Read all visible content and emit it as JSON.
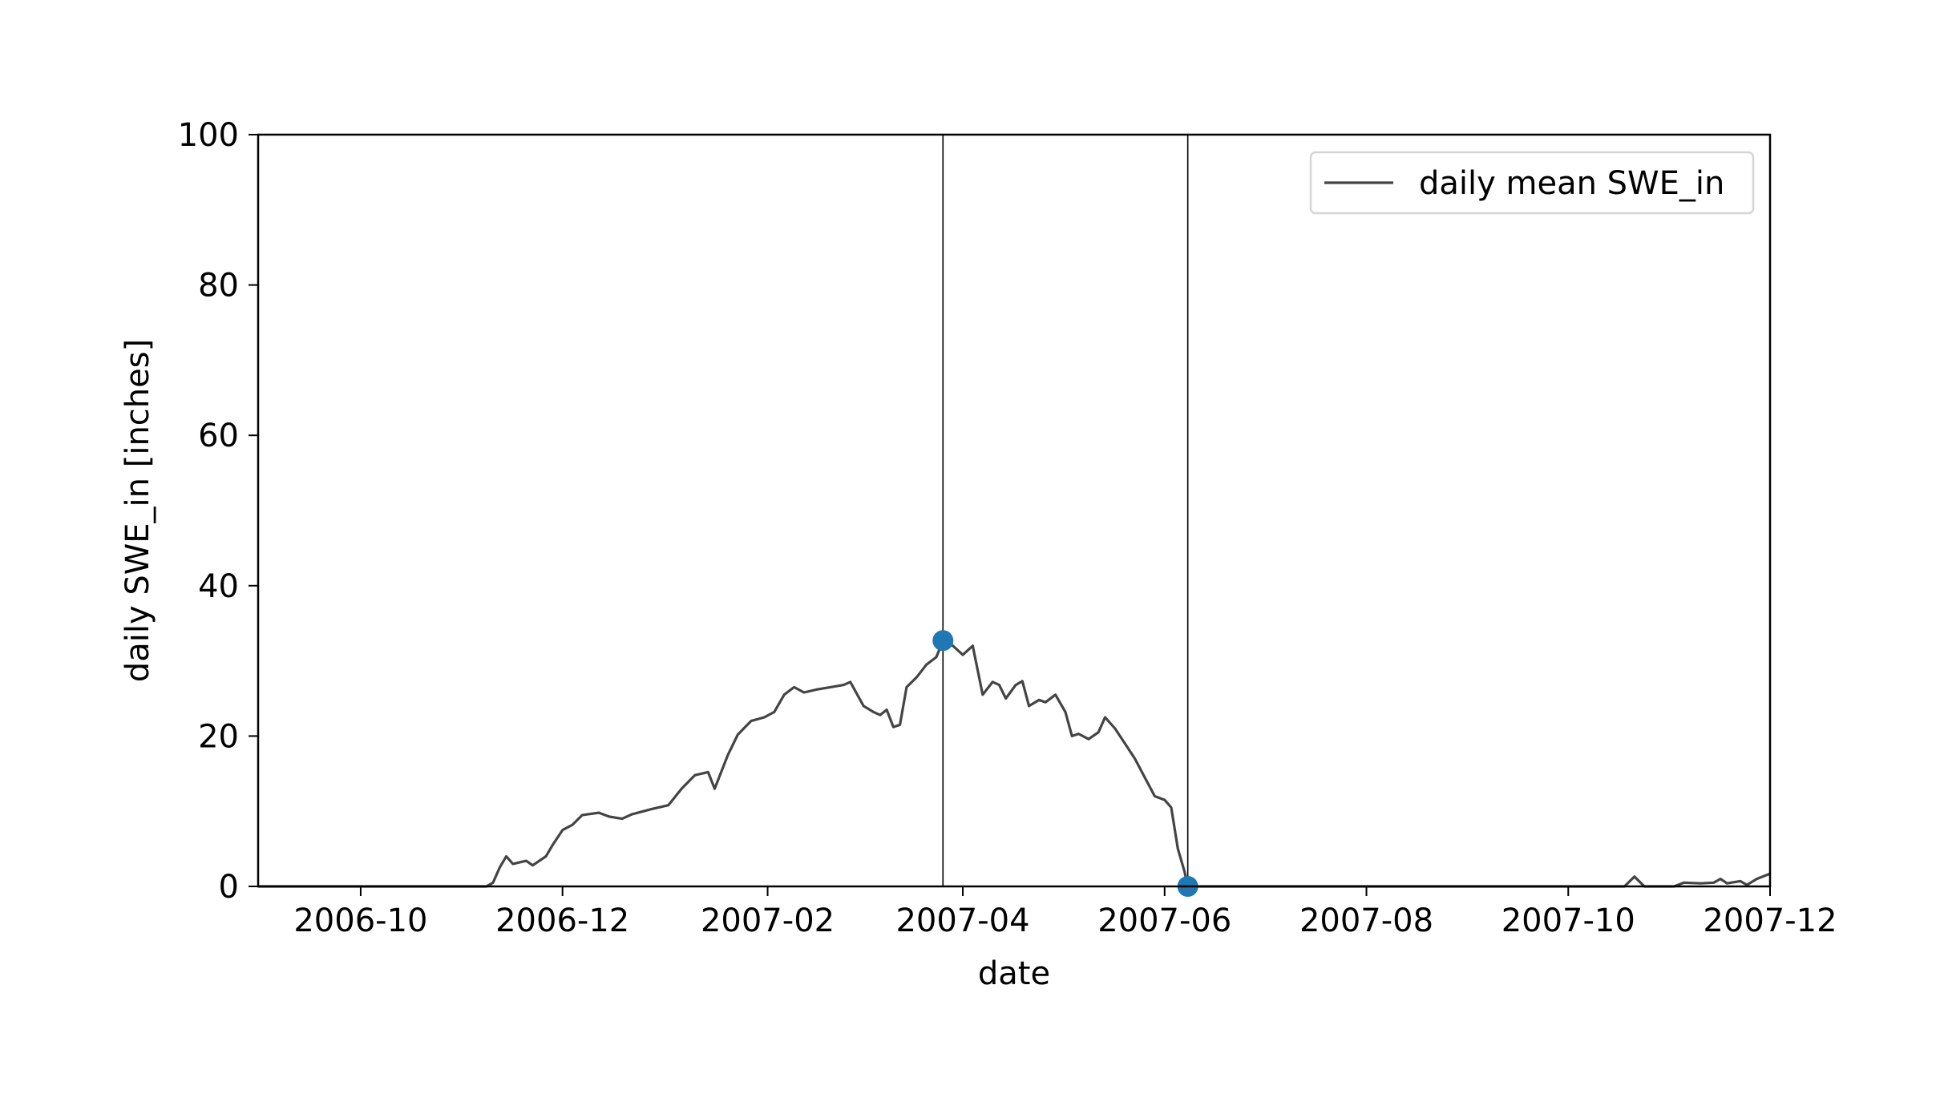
{
  "chart_data": {
    "type": "line",
    "title": "",
    "xlabel": "date",
    "ylabel": "daily SWE_in [inches]",
    "x_is_date": true,
    "xlim": [
      "2006-08-31",
      "2007-12-01"
    ],
    "ylim": [
      0,
      100
    ],
    "x_ticks": [
      "2006-10-01",
      "2006-12-01",
      "2007-02-01",
      "2007-04-01",
      "2007-06-01",
      "2007-08-01",
      "2007-10-01",
      "2007-12-01"
    ],
    "x_tick_labels": [
      "2006-10",
      "2006-12",
      "2007-02",
      "2007-04",
      "2007-06",
      "2007-08",
      "2007-10",
      "2007-12"
    ],
    "y_ticks": [
      0,
      20,
      40,
      60,
      80,
      100
    ],
    "y_tick_labels": [
      "0",
      "20",
      "40",
      "60",
      "80",
      "100"
    ],
    "grid": false,
    "legend_position": "top-right",
    "colors": {
      "line": "#444444",
      "marker": "#1f77b4",
      "vline": "#000000"
    },
    "series": [
      {
        "name": "daily mean SWE_in",
        "points": [
          [
            "2006-08-31",
            0
          ],
          [
            "2006-11-08",
            0
          ],
          [
            "2006-11-10",
            0.5
          ],
          [
            "2006-11-12",
            2.5
          ],
          [
            "2006-11-14",
            4
          ],
          [
            "2006-11-16",
            3
          ],
          [
            "2006-11-20",
            3.4
          ],
          [
            "2006-11-22",
            2.8
          ],
          [
            "2006-11-26",
            4
          ],
          [
            "2006-11-28",
            5.5
          ],
          [
            "2006-12-01",
            7.5
          ],
          [
            "2006-12-04",
            8.2
          ],
          [
            "2006-12-07",
            9.5
          ],
          [
            "2006-12-12",
            9.8
          ],
          [
            "2006-12-15",
            9.3
          ],
          [
            "2006-12-19",
            9
          ],
          [
            "2006-12-22",
            9.6
          ],
          [
            "2006-12-28",
            10.3
          ],
          [
            "2007-01-02",
            10.8
          ],
          [
            "2007-01-06",
            13
          ],
          [
            "2007-01-10",
            14.8
          ],
          [
            "2007-01-14",
            15.2
          ],
          [
            "2007-01-16",
            13
          ],
          [
            "2007-01-20",
            17.5
          ],
          [
            "2007-01-23",
            20.2
          ],
          [
            "2007-01-27",
            22
          ],
          [
            "2007-01-31",
            22.5
          ],
          [
            "2007-02-03",
            23.2
          ],
          [
            "2007-02-06",
            25.5
          ],
          [
            "2007-02-09",
            26.5
          ],
          [
            "2007-02-12",
            25.8
          ],
          [
            "2007-02-16",
            26.2
          ],
          [
            "2007-02-20",
            26.5
          ],
          [
            "2007-02-24",
            26.8
          ],
          [
            "2007-02-26",
            27.2
          ],
          [
            "2007-03-02",
            24
          ],
          [
            "2007-03-05",
            23.2
          ],
          [
            "2007-03-07",
            22.8
          ],
          [
            "2007-03-09",
            23.5
          ],
          [
            "2007-03-11",
            21.2
          ],
          [
            "2007-03-13",
            21.5
          ],
          [
            "2007-03-15",
            26.5
          ],
          [
            "2007-03-18",
            27.8
          ],
          [
            "2007-03-21",
            29.5
          ],
          [
            "2007-03-24",
            30.5
          ],
          [
            "2007-03-26",
            32.7
          ],
          [
            "2007-03-29",
            32
          ],
          [
            "2007-04-01",
            30.8
          ],
          [
            "2007-04-04",
            32
          ],
          [
            "2007-04-07",
            25.5
          ],
          [
            "2007-04-10",
            27.2
          ],
          [
            "2007-04-12",
            26.8
          ],
          [
            "2007-04-14",
            25
          ],
          [
            "2007-04-17",
            26.8
          ],
          [
            "2007-04-19",
            27.3
          ],
          [
            "2007-04-21",
            24
          ],
          [
            "2007-04-24",
            24.8
          ],
          [
            "2007-04-26",
            24.5
          ],
          [
            "2007-04-29",
            25.5
          ],
          [
            "2007-05-02",
            23.2
          ],
          [
            "2007-05-04",
            20
          ],
          [
            "2007-05-06",
            20.3
          ],
          [
            "2007-05-09",
            19.6
          ],
          [
            "2007-05-12",
            20.5
          ],
          [
            "2007-05-14",
            22.5
          ],
          [
            "2007-05-17",
            21
          ],
          [
            "2007-05-20",
            19
          ],
          [
            "2007-05-23",
            17
          ],
          [
            "2007-05-26",
            14.5
          ],
          [
            "2007-05-29",
            12
          ],
          [
            "2007-06-01",
            11.5
          ],
          [
            "2007-06-03",
            10.5
          ],
          [
            "2007-06-05",
            5
          ],
          [
            "2007-06-07",
            2
          ],
          [
            "2007-06-08",
            0
          ],
          [
            "2007-10-18",
            0
          ],
          [
            "2007-10-21",
            1.3
          ],
          [
            "2007-10-24",
            0
          ],
          [
            "2007-11-02",
            0
          ],
          [
            "2007-11-05",
            0.5
          ],
          [
            "2007-11-10",
            0.4
          ],
          [
            "2007-11-14",
            0.5
          ],
          [
            "2007-11-16",
            1
          ],
          [
            "2007-11-18",
            0.4
          ],
          [
            "2007-11-22",
            0.7
          ],
          [
            "2007-11-24",
            0.2
          ],
          [
            "2007-11-27",
            1
          ],
          [
            "2007-12-01",
            1.7
          ]
        ]
      }
    ],
    "highlight_points": [
      {
        "date": "2007-03-26",
        "value": 32.7
      },
      {
        "date": "2007-06-08",
        "value": 0
      }
    ],
    "vertical_lines": [
      "2007-03-26",
      "2007-06-08"
    ]
  }
}
